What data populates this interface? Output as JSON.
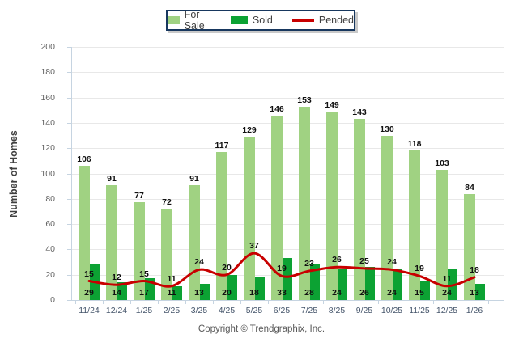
{
  "legend": {
    "items": [
      {
        "label": "For Sale",
        "color": "#A0D282",
        "type": "bar"
      },
      {
        "label": "Sold",
        "color": "#0CA233",
        "type": "bar"
      },
      {
        "label": "Pended",
        "color": "#C80000",
        "type": "line"
      }
    ]
  },
  "chart_data": {
    "type": "bar",
    "title": "",
    "xlabel": "",
    "ylabel": "Number of Homes",
    "ylim": [
      0,
      200
    ],
    "ytick_step": 20,
    "grid": "horizontal",
    "legend_position": "top-center",
    "categories": [
      "11/24",
      "12/24",
      "1/25",
      "2/25",
      "3/25",
      "4/25",
      "5/25",
      "6/25",
      "7/25",
      "8/25",
      "9/25",
      "10/25",
      "11/25",
      "12/25",
      "1/26"
    ],
    "series": [
      {
        "name": "For Sale",
        "type": "bar",
        "color": "#A0D282",
        "values": [
          106,
          91,
          77,
          72,
          91,
          117,
          129,
          146,
          153,
          149,
          143,
          130,
          118,
          103,
          84
        ]
      },
      {
        "name": "Sold",
        "type": "bar",
        "color": "#0CA233",
        "values": [
          29,
          14,
          17,
          11,
          13,
          20,
          18,
          33,
          28,
          24,
          26,
          24,
          15,
          24,
          13
        ]
      },
      {
        "name": "Pended",
        "type": "line",
        "color": "#C80000",
        "values": [
          15,
          12,
          15,
          11,
          24,
          20,
          37,
          19,
          23,
          26,
          25,
          24,
          19,
          11,
          18
        ]
      }
    ]
  },
  "footer": {
    "copyright": "Copyright © Trendgraphix, Inc."
  }
}
